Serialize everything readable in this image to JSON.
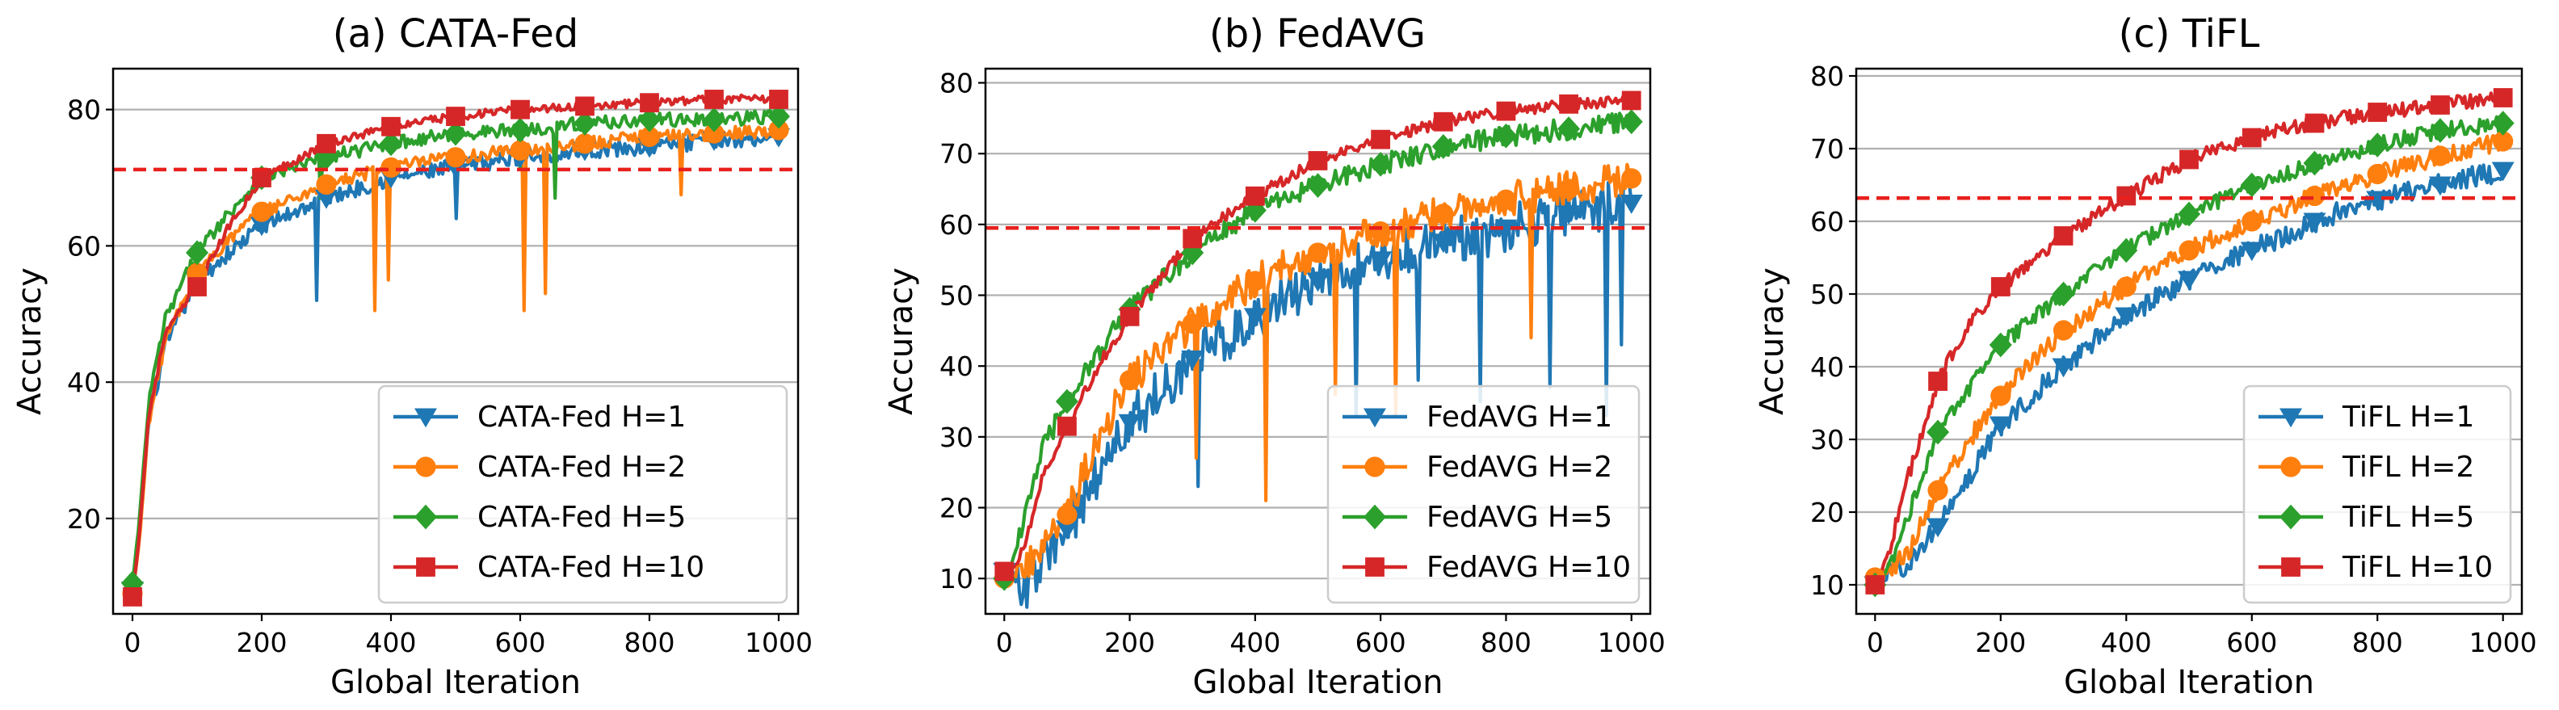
{
  "chart_data": [
    {
      "type": "line",
      "panel": "a",
      "title": "(a) CATA-Fed",
      "xlabel": "Global Iteration",
      "ylabel": "Accuracy",
      "xlim": [
        -30,
        1030
      ],
      "ylim": [
        6,
        86
      ],
      "xticks": [
        0,
        200,
        400,
        600,
        800,
        1000
      ],
      "yticks": [
        20,
        40,
        60,
        80
      ],
      "grid": "horizontal",
      "legend_position": "lower-right",
      "reference_line": 71.2,
      "series": [
        {
          "name": "CATA-Fed H=1",
          "color": "#1f77b4",
          "marker": "triangle-down",
          "x": [
            0,
            10,
            25,
            50,
            100,
            150,
            200,
            300,
            400,
            500,
            600,
            700,
            800,
            900,
            1000
          ],
          "y": [
            9.5,
            17,
            34,
            45,
            55,
            59,
            63,
            67,
            70,
            71.5,
            73,
            74,
            74.5,
            75.5,
            76
          ],
          "noise": 1.2,
          "spikes": [
            [
              285,
              52
            ],
            [
              500,
              64
            ]
          ]
        },
        {
          "name": "CATA-Fed H=2",
          "color": "#ff7f0e",
          "marker": "circle",
          "x": [
            0,
            10,
            25,
            50,
            100,
            150,
            200,
            300,
            400,
            500,
            600,
            700,
            800,
            900,
            1000
          ],
          "y": [
            9,
            16,
            34,
            46,
            56,
            61,
            65,
            69,
            71.5,
            73,
            74,
            75,
            76,
            76.5,
            77
          ],
          "noise": 1.0,
          "spikes": [
            [
              375,
              50.5
            ],
            [
              395,
              55
            ],
            [
              605,
              50.5
            ],
            [
              640,
              53
            ],
            [
              850,
              67.5
            ]
          ]
        },
        {
          "name": "CATA-Fed H=5",
          "color": "#2ca02c",
          "marker": "diamond",
          "x": [
            0,
            10,
            25,
            50,
            100,
            150,
            200,
            300,
            400,
            500,
            600,
            700,
            800,
            900,
            1000
          ],
          "y": [
            10.5,
            19,
            37,
            49,
            59,
            65,
            70,
            73,
            75,
            76.5,
            77,
            78,
            78.5,
            78.5,
            79
          ],
          "noise": 1.0,
          "spikes": [
            [
              290,
              67
            ],
            [
              655,
              67
            ],
            [
              600,
              71.5
            ]
          ]
        },
        {
          "name": "CATA-Fed H=10",
          "color": "#d62728",
          "marker": "square",
          "x": [
            0,
            10,
            25,
            50,
            100,
            150,
            200,
            300,
            400,
            500,
            600,
            700,
            800,
            900,
            1000
          ],
          "y": [
            8.5,
            17,
            35,
            47,
            54,
            63,
            70,
            75,
            77.5,
            79,
            80,
            80.5,
            81,
            81.5,
            81.5
          ],
          "noise": 0.6,
          "spikes": []
        }
      ]
    },
    {
      "type": "line",
      "panel": "b",
      "title": "(b) FedAVG",
      "xlabel": "Global Iteration",
      "ylabel": "Accuracy",
      "xlim": [
        -30,
        1030
      ],
      "ylim": [
        5,
        82
      ],
      "xticks": [
        0,
        200,
        400,
        600,
        800,
        1000
      ],
      "yticks": [
        10,
        20,
        30,
        40,
        50,
        60,
        70,
        80
      ],
      "grid": "horizontal",
      "legend_position": "lower-right",
      "reference_line": 59.5,
      "series": [
        {
          "name": "FedAVG H=1",
          "color": "#1f77b4",
          "marker": "triangle-down",
          "x": [
            0,
            20,
            40,
            60,
            100,
            150,
            200,
            300,
            400,
            500,
            600,
            700,
            800,
            900,
            1000
          ],
          "y": [
            11,
            10,
            8.5,
            12,
            17,
            25,
            32,
            41,
            47,
            52,
            55,
            57.5,
            59.5,
            61.5,
            63
          ],
          "noise": 3.5,
          "spikes": [
            [
              310,
              23
            ],
            [
              560,
              33
            ],
            [
              660,
              38
            ],
            [
              760,
              35
            ],
            [
              870,
              37
            ],
            [
              960,
              33
            ],
            [
              985,
              43
            ]
          ]
        },
        {
          "name": "FedAVG H=2",
          "color": "#ff7f0e",
          "marker": "circle",
          "x": [
            0,
            20,
            40,
            60,
            100,
            150,
            200,
            300,
            400,
            500,
            600,
            700,
            800,
            900,
            1000
          ],
          "y": [
            10,
            11,
            12,
            14,
            19,
            30,
            38,
            46,
            52,
            56,
            59,
            61.5,
            63.5,
            65,
            66.5
          ],
          "noise": 2.5,
          "spikes": [
            [
              305,
              27
            ],
            [
              418,
              21
            ],
            [
              528,
              36
            ],
            [
              625,
              33
            ],
            [
              840,
              44
            ]
          ]
        },
        {
          "name": "FedAVG H=5",
          "color": "#2ca02c",
          "marker": "diamond",
          "x": [
            0,
            20,
            40,
            60,
            100,
            150,
            200,
            300,
            400,
            500,
            600,
            700,
            800,
            900,
            1000
          ],
          "y": [
            10,
            14,
            22,
            28,
            35,
            42,
            48,
            56,
            62,
            65.5,
            68.5,
            71,
            72.5,
            73.5,
            74.5
          ],
          "noise": 1.5,
          "spikes": []
        },
        {
          "name": "FedAVG H=10",
          "color": "#d62728",
          "marker": "square",
          "x": [
            0,
            20,
            40,
            60,
            100,
            150,
            200,
            300,
            400,
            500,
            600,
            700,
            800,
            900,
            1000
          ],
          "y": [
            11,
            12,
            17,
            24,
            31.5,
            40,
            47,
            58,
            64,
            69,
            72,
            74.5,
            76,
            77,
            77.5
          ],
          "noise": 0.8,
          "spikes": []
        }
      ]
    },
    {
      "type": "line",
      "panel": "c",
      "title": "(c) TiFL",
      "xlabel": "Global Iteration",
      "ylabel": "Accuracy",
      "xlim": [
        -30,
        1030
      ],
      "ylim": [
        6,
        81
      ],
      "xticks": [
        0,
        200,
        400,
        600,
        800,
        1000
      ],
      "yticks": [
        10,
        20,
        30,
        40,
        50,
        60,
        70,
        80
      ],
      "grid": "horizontal",
      "legend_position": "lower-right",
      "reference_line": 63.2,
      "series": [
        {
          "name": "TiFL H=1",
          "color": "#1f77b4",
          "marker": "triangle-down",
          "x": [
            0,
            20,
            50,
            100,
            150,
            200,
            300,
            400,
            500,
            600,
            700,
            800,
            900,
            1000
          ],
          "y": [
            10,
            11,
            13,
            18,
            25,
            32,
            40,
            47,
            52,
            56,
            60,
            63,
            65,
            67
          ],
          "noise": 1.5,
          "spikes": []
        },
        {
          "name": "TiFL H=2",
          "color": "#ff7f0e",
          "marker": "circle",
          "x": [
            0,
            20,
            50,
            100,
            150,
            200,
            300,
            400,
            500,
            600,
            700,
            800,
            900,
            1000
          ],
          "y": [
            11,
            12,
            14,
            23,
            30,
            36,
            45,
            51,
            56,
            60,
            63.5,
            66.5,
            69,
            71
          ],
          "noise": 1.3,
          "spikes": []
        },
        {
          "name": "TiFL H=5",
          "color": "#2ca02c",
          "marker": "diamond",
          "x": [
            0,
            20,
            50,
            100,
            150,
            200,
            300,
            400,
            500,
            600,
            700,
            800,
            900,
            1000
          ],
          "y": [
            10,
            12,
            19,
            31,
            37,
            43,
            50,
            56,
            61,
            65,
            68,
            70.5,
            72.5,
            73.5
          ],
          "noise": 1.1,
          "spikes": []
        },
        {
          "name": "TiFL H=10",
          "color": "#d62728",
          "marker": "square",
          "x": [
            0,
            20,
            50,
            100,
            150,
            200,
            300,
            400,
            500,
            600,
            700,
            800,
            900,
            1000
          ],
          "y": [
            10,
            14,
            24,
            38,
            46,
            51,
            58,
            63.5,
            68.5,
            71.5,
            73.5,
            75,
            76,
            77
          ],
          "noise": 1.0,
          "spikes": []
        }
      ]
    }
  ]
}
